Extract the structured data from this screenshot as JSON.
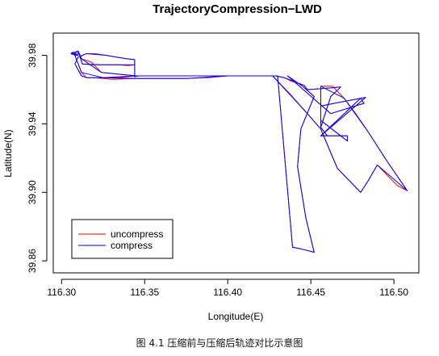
{
  "chart_data": {
    "type": "line",
    "title": "TrajectoryCompression−LWD",
    "xlabel": "Longitude(E)",
    "ylabel": "Latitude(N)",
    "xlim": [
      116.295,
      116.515
    ],
    "ylim": [
      39.853,
      39.993
    ],
    "xticks": [
      116.3,
      116.35,
      116.4,
      116.45,
      116.5
    ],
    "xtick_labels": [
      "116.30",
      "116.35",
      "116.40",
      "116.45",
      "116.50"
    ],
    "yticks": [
      39.86,
      39.9,
      39.94,
      39.98
    ],
    "ytick_labels": [
      "39.86",
      "39.90",
      "39.94",
      "39.98"
    ],
    "grid": false,
    "legend_position": "bottom-left",
    "series": [
      {
        "name": "uncompress",
        "color": "#ff0000",
        "x": [
          116.3055,
          116.309,
          116.31,
          116.31,
          116.3125,
          116.318,
          116.324,
          116.33,
          116.335,
          116.34,
          116.344,
          116.344,
          116.346,
          116.365,
          116.385,
          116.405,
          116.419,
          116.429,
          116.434,
          116.438,
          116.446,
          116.448,
          116.456,
          116.468,
          116.462,
          116.456,
          116.46,
          116.46,
          116.456,
          116.456,
          116.472,
          116.472,
          116.472,
          116.456,
          116.456,
          116.483,
          116.456,
          116.456,
          116.48,
          116.482,
          116.462,
          116.436,
          116.445,
          116.452,
          116.444,
          116.442,
          116.447,
          116.452,
          116.444,
          116.439,
          116.43,
          116.42,
          116.41,
          116.4,
          116.388,
          116.375,
          116.36,
          116.345,
          116.33,
          116.32,
          116.315,
          116.312,
          116.308,
          116.31,
          116.315,
          116.32,
          116.327,
          116.333,
          116.339,
          116.344,
          116.344,
          116.335,
          116.325,
          116.315,
          116.312,
          116.31,
          116.308,
          116.309,
          116.306,
          116.308,
          116.31,
          116.307,
          116.31,
          116.312,
          116.318,
          116.324,
          116.334,
          116.345,
          116.36,
          116.375,
          116.39,
          116.405,
          116.417,
          116.427,
          116.437,
          116.447,
          116.456,
          116.462,
          116.466,
          116.472,
          116.478,
          116.48,
          116.484,
          116.49,
          116.496,
          116.502,
          116.508,
          116.496,
          116.484,
          116.477,
          116.47,
          116.463,
          116.456,
          116.456
        ],
        "y": [
          39.981,
          39.98,
          39.981,
          39.9825,
          39.975,
          39.9745,
          39.9745,
          39.9745,
          39.9745,
          39.974,
          39.9745,
          39.9675,
          39.968,
          39.968,
          39.968,
          39.968,
          39.968,
          39.968,
          39.967,
          39.965,
          39.9625,
          39.96,
          39.9605,
          39.9615,
          39.956,
          39.938,
          39.933,
          39.933,
          39.933,
          39.933,
          39.933,
          39.931,
          39.93,
          39.942,
          39.9505,
          39.9555,
          39.933,
          39.933,
          39.955,
          39.952,
          39.946,
          39.968,
          39.962,
          39.956,
          39.937,
          39.915,
          39.885,
          39.865,
          39.867,
          39.868,
          39.968,
          39.968,
          39.968,
          39.968,
          39.967,
          39.9665,
          39.9665,
          39.9665,
          39.966,
          39.967,
          39.967,
          39.968,
          39.975,
          39.979,
          39.981,
          39.981,
          39.98,
          39.979,
          39.978,
          39.9775,
          39.968,
          39.967,
          39.967,
          39.967,
          39.97,
          39.975,
          39.98,
          39.982,
          39.9815,
          39.9805,
          39.98,
          39.9815,
          39.9825,
          39.978,
          39.976,
          39.97,
          39.969,
          39.968,
          39.968,
          39.968,
          39.968,
          39.968,
          39.968,
          39.968,
          39.958,
          39.947,
          39.937,
          39.923,
          39.914,
          39.908,
          39.902,
          39.9,
          39.906,
          39.916,
          39.91,
          39.904,
          39.901,
          39.918,
          39.936,
          39.946,
          39.955,
          39.962,
          39.962,
          39.938
        ]
      },
      {
        "name": "compress",
        "color": "#0000ff",
        "x": [
          116.3055,
          116.309,
          116.31,
          116.31,
          116.3125,
          116.324,
          116.335,
          116.344,
          116.344,
          116.346,
          116.405,
          116.429,
          116.434,
          116.446,
          116.448,
          116.456,
          116.468,
          116.462,
          116.456,
          116.46,
          116.456,
          116.472,
          116.472,
          116.456,
          116.456,
          116.483,
          116.456,
          116.456,
          116.48,
          116.482,
          116.462,
          116.436,
          116.445,
          116.452,
          116.444,
          116.442,
          116.447,
          116.452,
          116.444,
          116.439,
          116.43,
          116.4,
          116.375,
          116.345,
          116.32,
          116.315,
          116.312,
          116.308,
          116.31,
          116.315,
          116.327,
          116.339,
          116.344,
          116.344,
          116.325,
          116.312,
          116.31,
          116.308,
          116.309,
          116.306,
          116.31,
          116.307,
          116.31,
          116.312,
          116.324,
          116.345,
          116.375,
          116.405,
          116.427,
          116.447,
          116.456,
          116.466,
          116.478,
          116.48,
          116.484,
          116.49,
          116.508,
          116.496,
          116.484,
          116.47,
          116.456,
          116.456
        ],
        "y": [
          39.981,
          39.98,
          39.981,
          39.9825,
          39.975,
          39.9745,
          39.9745,
          39.9745,
          39.9675,
          39.968,
          39.968,
          39.968,
          39.967,
          39.9625,
          39.96,
          39.9605,
          39.9615,
          39.956,
          39.938,
          39.933,
          39.933,
          39.933,
          39.93,
          39.942,
          39.9505,
          39.9555,
          39.933,
          39.933,
          39.955,
          39.952,
          39.946,
          39.968,
          39.962,
          39.956,
          39.937,
          39.915,
          39.885,
          39.865,
          39.867,
          39.868,
          39.968,
          39.968,
          39.9665,
          39.9665,
          39.967,
          39.967,
          39.968,
          39.975,
          39.979,
          39.981,
          39.98,
          39.978,
          39.9775,
          39.968,
          39.967,
          39.97,
          39.975,
          39.98,
          39.982,
          39.9815,
          39.98,
          39.9815,
          39.9825,
          39.978,
          39.97,
          39.968,
          39.968,
          39.968,
          39.968,
          39.947,
          39.937,
          39.914,
          39.902,
          39.9,
          39.906,
          39.916,
          39.901,
          39.918,
          39.936,
          39.955,
          39.962,
          39.938
        ]
      }
    ]
  },
  "legend": {
    "items": [
      {
        "label": "uncompress",
        "color": "#ff0000"
      },
      {
        "label": "compress",
        "color": "#0000ff"
      }
    ]
  },
  "caption": "图 4.1  压缩前与压缩后轨迹对比示意图"
}
